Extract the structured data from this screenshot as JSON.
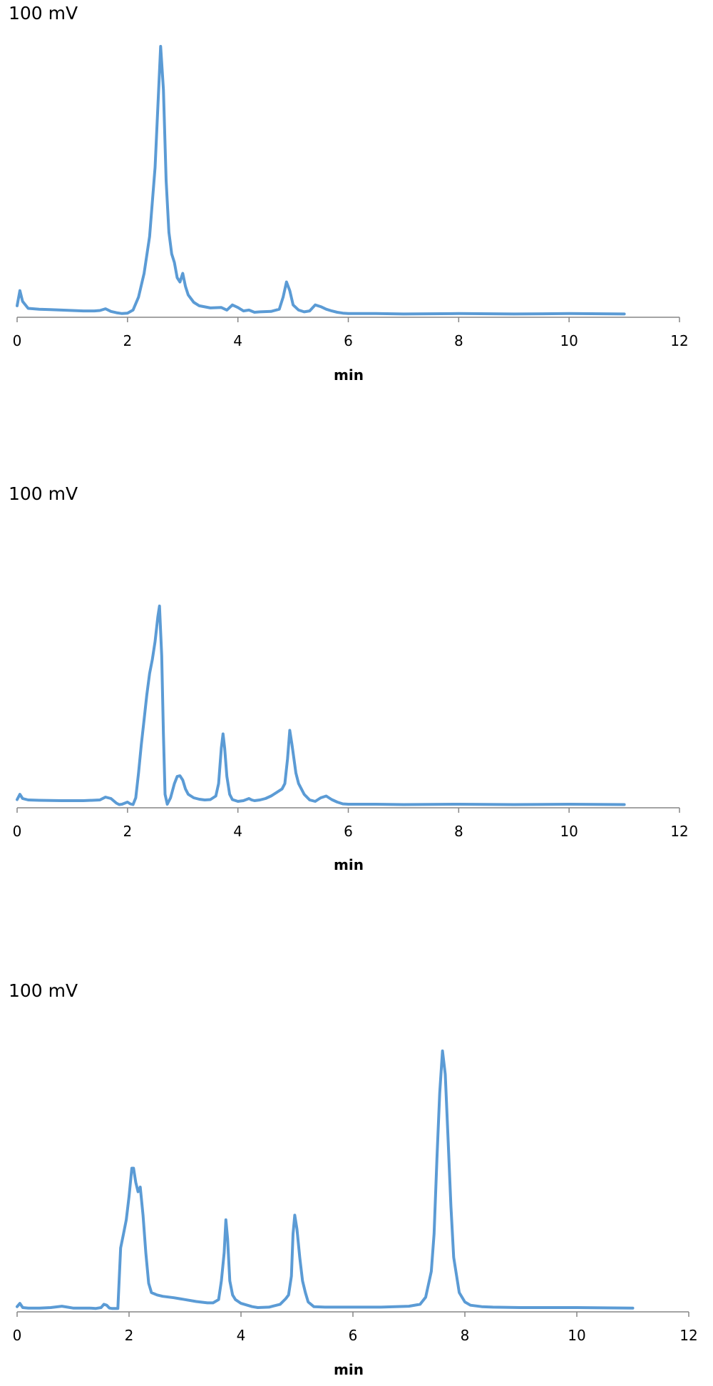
{
  "chart_data": [
    {
      "type": "line",
      "ylabel": "100 mV",
      "xlabel": "min",
      "xlim": [
        0,
        12
      ],
      "xticks": [
        "0",
        "2",
        "4",
        "6",
        "8",
        "10",
        "12"
      ],
      "line_color": "#5B9BD5",
      "series": [
        {
          "x": [
            0,
            0.05,
            0.1,
            0.2,
            0.4,
            0.6,
            0.8,
            1.0,
            1.2,
            1.4,
            1.5,
            1.6,
            1.7,
            1.8,
            1.9,
            2.0,
            2.1,
            2.2,
            2.3,
            2.4,
            2.5,
            2.55,
            2.6,
            2.65,
            2.7,
            2.75,
            2.8,
            2.85,
            2.9,
            2.95,
            3.0,
            3.05,
            3.1,
            3.2,
            3.3,
            3.5,
            3.7,
            3.8,
            3.9,
            4.0,
            4.1,
            4.2,
            4.3,
            4.4,
            4.6,
            4.75,
            4.82,
            4.88,
            4.94,
            5.0,
            5.1,
            5.2,
            5.3,
            5.4,
            5.5,
            5.6,
            5.7,
            5.8,
            5.9,
            6.0,
            6.5,
            7.0,
            8.0,
            9.0,
            10.0,
            11.0
          ],
          "y": [
            0.2,
            0.55,
            0.3,
            0.14,
            0.12,
            0.11,
            0.1,
            0.09,
            0.08,
            0.08,
            0.09,
            0.13,
            0.07,
            0.04,
            0.02,
            0.03,
            0.1,
            0.4,
            0.95,
            1.8,
            3.4,
            4.8,
            6.2,
            5.2,
            3.1,
            1.9,
            1.4,
            1.2,
            0.85,
            0.75,
            0.95,
            0.65,
            0.45,
            0.28,
            0.2,
            0.15,
            0.16,
            0.1,
            0.22,
            0.16,
            0.08,
            0.1,
            0.05,
            0.06,
            0.07,
            0.12,
            0.4,
            0.75,
            0.55,
            0.22,
            0.1,
            0.06,
            0.08,
            0.22,
            0.18,
            0.12,
            0.08,
            0.05,
            0.03,
            0.02,
            0.02,
            0.01,
            0.02,
            0.01,
            0.02,
            0.01
          ]
        }
      ]
    },
    {
      "type": "line",
      "ylabel": "100 mV",
      "xlabel": "min",
      "xlim": [
        0,
        12
      ],
      "xticks": [
        "0",
        "2",
        "4",
        "6",
        "8",
        "10",
        "12"
      ],
      "line_color": "#5B9BD5",
      "series": [
        {
          "x": [
            0,
            0.05,
            0.1,
            0.2,
            0.4,
            0.8,
            1.2,
            1.5,
            1.6,
            1.7,
            1.8,
            1.85,
            1.9,
            1.95,
            2.0,
            2.05,
            2.1,
            2.15,
            2.2,
            2.25,
            2.3,
            2.35,
            2.4,
            2.45,
            2.5,
            2.55,
            2.58,
            2.62,
            2.65,
            2.68,
            2.72,
            2.78,
            2.85,
            2.9,
            2.95,
            3.0,
            3.05,
            3.1,
            3.2,
            3.3,
            3.4,
            3.5,
            3.6,
            3.65,
            3.7,
            3.73,
            3.76,
            3.8,
            3.85,
            3.9,
            4.0,
            4.1,
            4.2,
            4.25,
            4.3,
            4.4,
            4.5,
            4.6,
            4.7,
            4.8,
            4.85,
            4.9,
            4.94,
            4.98,
            5.05,
            5.1,
            5.15,
            5.2,
            5.3,
            5.4,
            5.5,
            5.6,
            5.7,
            5.8,
            5.9,
            6.0,
            6.5,
            7.0,
            8.0,
            9.0,
            10.0,
            11.0
          ],
          "y": [
            0.15,
            0.3,
            0.18,
            0.14,
            0.13,
            0.12,
            0.12,
            0.14,
            0.22,
            0.18,
            0.05,
            0.01,
            0.02,
            0.05,
            0.08,
            0.03,
            0.01,
            0.2,
            0.9,
            1.7,
            2.4,
            3.1,
            3.7,
            4.1,
            4.6,
            5.3,
            5.6,
            4.2,
            2.0,
            0.3,
            0.02,
            0.2,
            0.6,
            0.8,
            0.82,
            0.7,
            0.45,
            0.3,
            0.2,
            0.16,
            0.14,
            0.15,
            0.25,
            0.6,
            1.6,
            2.0,
            1.6,
            0.8,
            0.3,
            0.15,
            0.1,
            0.12,
            0.18,
            0.14,
            0.12,
            0.14,
            0.18,
            0.25,
            0.35,
            0.45,
            0.6,
            1.3,
            2.1,
            1.7,
            0.9,
            0.6,
            0.45,
            0.3,
            0.14,
            0.1,
            0.2,
            0.25,
            0.15,
            0.08,
            0.03,
            0.02,
            0.02,
            0.01,
            0.02,
            0.01,
            0.02,
            0.01
          ]
        }
      ]
    },
    {
      "type": "line",
      "ylabel": "100 mV",
      "xlabel": "min",
      "xlim": [
        0,
        12
      ],
      "xticks": [
        "0",
        "2",
        "4",
        "6",
        "8",
        "10",
        "12"
      ],
      "line_color": "#5B9BD5",
      "series": [
        {
          "x": [
            0,
            0.05,
            0.1,
            0.2,
            0.4,
            0.6,
            0.8,
            0.9,
            1.0,
            1.2,
            1.3,
            1.4,
            1.5,
            1.55,
            1.6,
            1.65,
            1.7,
            1.75,
            1.8,
            1.85,
            1.9,
            1.95,
            2.0,
            2.05,
            2.08,
            2.12,
            2.16,
            2.2,
            2.25,
            2.3,
            2.35,
            2.4,
            2.5,
            2.6,
            2.8,
            3.0,
            3.2,
            3.4,
            3.5,
            3.6,
            3.65,
            3.7,
            3.73,
            3.76,
            3.8,
            3.85,
            3.9,
            4.0,
            4.2,
            4.3,
            4.5,
            4.7,
            4.8,
            4.85,
            4.9,
            4.93,
            4.96,
            5.0,
            5.05,
            5.1,
            5.15,
            5.2,
            5.3,
            5.5,
            6.0,
            6.5,
            7.0,
            7.2,
            7.3,
            7.4,
            7.45,
            7.5,
            7.55,
            7.6,
            7.65,
            7.7,
            7.75,
            7.8,
            7.9,
            8.0,
            8.1,
            8.3,
            8.5,
            9.0,
            10.0,
            11.0
          ],
          "y": [
            0.05,
            0.12,
            0.03,
            0.02,
            0.02,
            0.03,
            0.06,
            0.04,
            0.02,
            0.02,
            0.02,
            0.01,
            0.03,
            0.1,
            0.08,
            0.02,
            0.01,
            0.01,
            0.01,
            1.3,
            1.6,
            1.9,
            2.4,
            3.0,
            3.0,
            2.7,
            2.5,
            2.6,
            2.0,
            1.2,
            0.55,
            0.35,
            0.3,
            0.27,
            0.24,
            0.2,
            0.16,
            0.13,
            0.13,
            0.2,
            0.6,
            1.2,
            1.9,
            1.5,
            0.6,
            0.3,
            0.2,
            0.12,
            0.05,
            0.03,
            0.04,
            0.1,
            0.22,
            0.3,
            0.7,
            1.6,
            2.0,
            1.7,
            1.1,
            0.6,
            0.35,
            0.15,
            0.05,
            0.04,
            0.04,
            0.04,
            0.06,
            0.1,
            0.25,
            0.8,
            1.6,
            3.2,
            4.6,
            5.5,
            5.0,
            3.6,
            2.2,
            1.1,
            0.35,
            0.15,
            0.08,
            0.05,
            0.04,
            0.03,
            0.03,
            0.02
          ]
        }
      ]
    }
  ]
}
